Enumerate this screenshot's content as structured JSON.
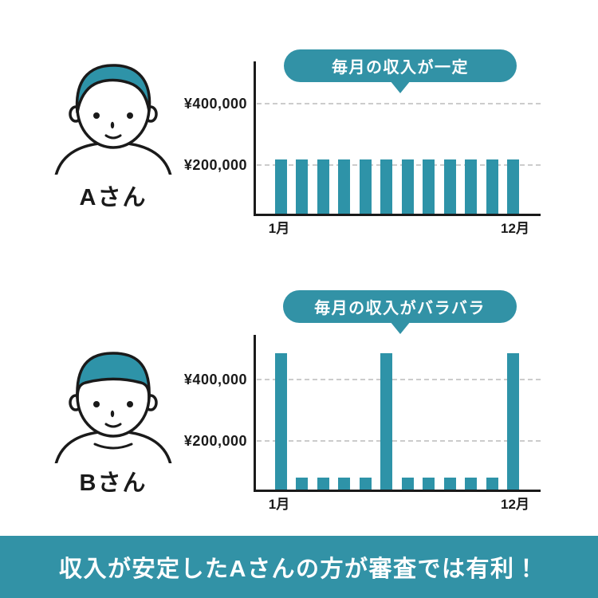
{
  "colors": {
    "teal": "#2E93A8",
    "bubble": "#3292A6",
    "banner": "#3292A6",
    "ink": "#1A1A1A",
    "grid": "#CCCCCC",
    "bg": "#FFFFFF"
  },
  "persons": [
    {
      "name": "Aさん",
      "bubble_label": "毎月の収入が一定"
    },
    {
      "name": "Bさん",
      "bubble_label": "毎月の収入がバラバラ"
    }
  ],
  "chart_data": [
    {
      "type": "bar",
      "person": "Aさん",
      "title": "毎月の収入が一定",
      "n_bars": 12,
      "values": [
        215000,
        215000,
        215000,
        215000,
        215000,
        215000,
        215000,
        215000,
        215000,
        215000,
        215000,
        215000
      ],
      "x_tick_labels": [
        "1月",
        "12月"
      ],
      "y_tick_labels": [
        "¥400,000",
        "¥200,000"
      ],
      "y_ticks": [
        400000,
        200000
      ],
      "ylim": [
        0,
        500000
      ],
      "grid": "horizontal-dashed",
      "legend": "none",
      "bar_color": "#2E93A8"
    },
    {
      "type": "bar",
      "person": "Bさん",
      "title": "毎月の収入がバラバラ",
      "n_bars": 12,
      "values": [
        490000,
        80000,
        80000,
        80000,
        80000,
        490000,
        80000,
        80000,
        80000,
        80000,
        80000,
        490000
      ],
      "x_tick_labels": [
        "1月",
        "12月"
      ],
      "y_tick_labels": [
        "¥400,000",
        "¥200,000"
      ],
      "y_ticks": [
        400000,
        200000
      ],
      "ylim": [
        0,
        500000
      ],
      "grid": "horizontal-dashed",
      "legend": "none",
      "bar_color": "#2E93A8"
    }
  ],
  "banner": {
    "text": "収入が安定したAさんの方が審査では有利！"
  }
}
